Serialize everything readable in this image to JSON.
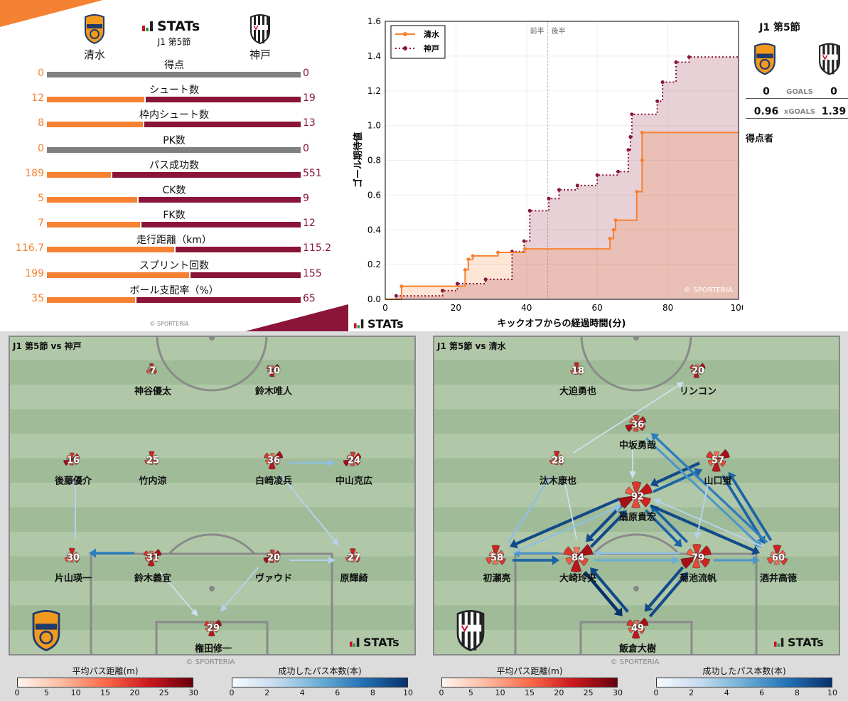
{
  "header": {
    "round": "J1 第5節",
    "brand": "STATs",
    "home": "清水",
    "away": "神戸",
    "copyright": "© SPORTERIA"
  },
  "colors": {
    "home": "#f58232",
    "away": "#8a1538",
    "neutral": "#808080"
  },
  "stats": [
    {
      "label": "得点",
      "home": "0",
      "away": "0"
    },
    {
      "label": "シュート数",
      "home": "12",
      "away": "19"
    },
    {
      "label": "枠内シュート数",
      "home": "8",
      "away": "13"
    },
    {
      "label": "PK数",
      "home": "0",
      "away": "0"
    },
    {
      "label": "パス成功数",
      "home": "189",
      "away": "551"
    },
    {
      "label": "CK数",
      "home": "5",
      "away": "9"
    },
    {
      "label": "FK数",
      "home": "7",
      "away": "12"
    },
    {
      "label": "走行距離（km）",
      "home": "116.7",
      "away": "115.2"
    },
    {
      "label": "スプリント回数",
      "home": "199",
      "away": "155"
    },
    {
      "label": "ボール支配率（%）",
      "home": "35",
      "away": "65"
    }
  ],
  "chart_data": {
    "type": "line",
    "step": true,
    "xlabel": "キックオフからの経過時間(分)",
    "ylabel": "ゴール期待値",
    "xlim": [
      0,
      100
    ],
    "ylim": [
      0,
      1.6
    ],
    "xticks": [
      "0",
      "20",
      "40",
      "60",
      "80",
      "100"
    ],
    "yticks": [
      "0.0",
      "0.2",
      "0.4",
      "0.6",
      "0.8",
      "1.0",
      "1.2",
      "1.4",
      "1.6"
    ],
    "halftime": 46,
    "first_half": "前半",
    "second_half": "後半",
    "legend": "top-left",
    "grid": true,
    "watermark": "© SPORTERIA",
    "series": [
      {
        "name": "清水",
        "style": "solid",
        "color": "#f58232",
        "points": [
          [
            4.6,
            0.075
          ],
          [
            22.6,
            0.17
          ],
          [
            23.5,
            0.23
          ],
          [
            24.8,
            0.25
          ],
          [
            31.9,
            0.27
          ],
          [
            39.5,
            0.29
          ],
          [
            63.6,
            0.35
          ],
          [
            64.6,
            0.4
          ],
          [
            65.2,
            0.455
          ],
          [
            71.2,
            0.62
          ],
          [
            72.7,
            0.8
          ],
          [
            72.7,
            0.96
          ],
          [
            100,
            0.96
          ]
        ]
      },
      {
        "name": "神戸",
        "style": "dotted",
        "color": "#8a1538",
        "points": [
          [
            3.1,
            0.02
          ],
          [
            16.2,
            0.05
          ],
          [
            20.4,
            0.09
          ],
          [
            28.4,
            0.115
          ],
          [
            35.9,
            0.275
          ],
          [
            39.3,
            0.335
          ],
          [
            40.9,
            0.51
          ],
          [
            46.3,
            0.58
          ],
          [
            49.2,
            0.63
          ],
          [
            54.4,
            0.655
          ],
          [
            60,
            0.715
          ],
          [
            65.9,
            0.735
          ],
          [
            68.8,
            0.86
          ],
          [
            69.4,
            0.935
          ],
          [
            69.8,
            1.065
          ],
          [
            77,
            1.14
          ],
          [
            78.5,
            1.25
          ],
          [
            82.3,
            1.365
          ],
          [
            86,
            1.395
          ],
          [
            100,
            1.395
          ]
        ]
      }
    ]
  },
  "summary": {
    "round": "J1 第5節",
    "goals_label": "GOALS",
    "home_goals": "0",
    "away_goals": "0",
    "xg_label": "xGOALS",
    "home_xg": "0.96",
    "away_xg": "1.39",
    "scorers_label": "得点者"
  },
  "pitches": [
    {
      "title": "J1 第5節 vs 神戸",
      "players": [
        {
          "num": "7",
          "name": "神谷優太"
        },
        {
          "num": "10",
          "name": "鈴木唯人"
        },
        {
          "num": "16",
          "name": "後藤優介"
        },
        {
          "num": "25",
          "name": "竹内涼"
        },
        {
          "num": "36",
          "name": "白崎凌兵"
        },
        {
          "num": "24",
          "name": "中山克広"
        },
        {
          "num": "30",
          "name": "片山瑛一"
        },
        {
          "num": "31",
          "name": "鈴木義宜"
        },
        {
          "num": "20",
          "name": "ヴァウド"
        },
        {
          "num": "27",
          "name": "原輝綺"
        },
        {
          "num": "29",
          "name": "権田修一"
        }
      ],
      "passes": [
        [
          6,
          2,
          3
        ],
        [
          7,
          6,
          7
        ],
        [
          4,
          5,
          4
        ],
        [
          4,
          9,
          3
        ],
        [
          8,
          9,
          3
        ],
        [
          7,
          10,
          2
        ],
        [
          8,
          10,
          3
        ]
      ]
    },
    {
      "title": "J1 第5節 vs 清水",
      "players": [
        {
          "num": "18",
          "name": "大迫勇也"
        },
        {
          "num": "20",
          "name": "リンコン"
        },
        {
          "num": "36",
          "name": "中坂勇哉"
        },
        {
          "num": "28",
          "name": "汰木康也"
        },
        {
          "num": "57",
          "name": "山口蛍"
        },
        {
          "num": "92",
          "name": "扇原貴宏"
        },
        {
          "num": "58",
          "name": "初瀬亮"
        },
        {
          "num": "84",
          "name": "大崎玲央"
        },
        {
          "num": "79",
          "name": "菊池流帆"
        },
        {
          "num": "60",
          "name": "酒井高徳"
        },
        {
          "num": "49",
          "name": "飯倉大樹"
        }
      ],
      "passes": [
        [
          7,
          10,
          10
        ],
        [
          10,
          7,
          9
        ],
        [
          8,
          10,
          9
        ],
        [
          10,
          8,
          9
        ],
        [
          5,
          6,
          9
        ],
        [
          6,
          7,
          8
        ],
        [
          7,
          6,
          6
        ],
        [
          6,
          3,
          4
        ],
        [
          7,
          3,
          2
        ],
        [
          7,
          5,
          9
        ],
        [
          5,
          7,
          9
        ],
        [
          5,
          8,
          8
        ],
        [
          8,
          5,
          8
        ],
        [
          5,
          9,
          9
        ],
        [
          8,
          9,
          6
        ],
        [
          7,
          8,
          5
        ],
        [
          8,
          7,
          4
        ],
        [
          4,
          5,
          9
        ],
        [
          5,
          4,
          8
        ],
        [
          9,
          4,
          8
        ],
        [
          4,
          9,
          8
        ],
        [
          2,
          9,
          6
        ],
        [
          9,
          2,
          7
        ],
        [
          9,
          5,
          3
        ],
        [
          2,
          5,
          2
        ],
        [
          3,
          1,
          2
        ],
        [
          6,
          5,
          4
        ],
        [
          4,
          8,
          3
        ]
      ]
    }
  ],
  "colorbars": {
    "distance_title": "平均パス距離(m)",
    "distance_ticks": [
      "0",
      "5",
      "10",
      "15",
      "20",
      "25",
      "30"
    ],
    "count_title": "成功したパス本数(本)",
    "count_ticks": [
      "0",
      "2",
      "4",
      "6",
      "8",
      "10"
    ]
  }
}
